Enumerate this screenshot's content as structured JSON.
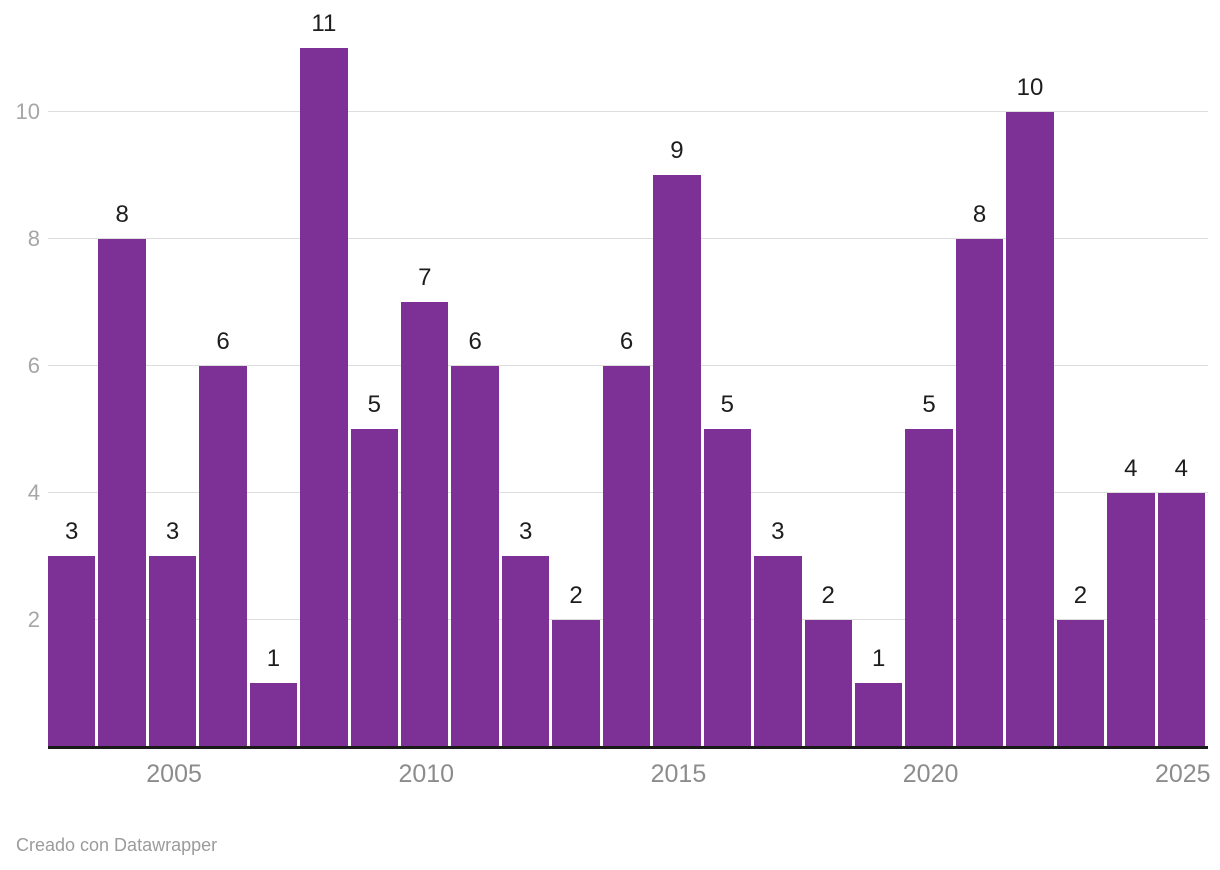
{
  "chart_data": {
    "type": "bar",
    "x": [
      2003,
      2004,
      2005,
      2006,
      2007,
      2008,
      2009,
      2010,
      2011,
      2012,
      2013,
      2014,
      2015,
      2016,
      2017,
      2018,
      2019,
      2020,
      2021,
      2022,
      2023,
      2024,
      2025
    ],
    "values": [
      3,
      8,
      3,
      6,
      1,
      11,
      5,
      7,
      6,
      3,
      2,
      6,
      9,
      5,
      3,
      2,
      1,
      5,
      8,
      10,
      2,
      4,
      4
    ],
    "bar_value_labels": [
      "3",
      "8",
      "3",
      "6",
      "1",
      "11",
      "5",
      "7",
      "6",
      "3",
      "2",
      "6",
      "9",
      "5",
      "3",
      "2",
      "1",
      "5",
      "8",
      "10",
      "2",
      "4",
      "4"
    ],
    "title": "",
    "xlabel": "",
    "ylabel": "",
    "ylim": [
      0,
      11
    ],
    "y_ticks": [
      2,
      4,
      6,
      8,
      10
    ],
    "y_tick_labels": [
      "2",
      "4",
      "6",
      "8",
      "10"
    ],
    "x_ticks": [
      2005,
      2010,
      2015,
      2020,
      2025
    ],
    "x_tick_labels": [
      "2005",
      "2010",
      "2015",
      "2020",
      "2025"
    ],
    "grid": "horizontal",
    "legend": "none",
    "colors": {
      "bar": "#7d3095",
      "gridline": "#dedede",
      "axis_line": "#1a1a1a",
      "y_tick_text": "#a6a6a6",
      "x_tick_text": "#8c8c8c",
      "value_label_text": "#1d1d1d"
    }
  },
  "footer": {
    "credit": "Creado con Datawrapper"
  }
}
